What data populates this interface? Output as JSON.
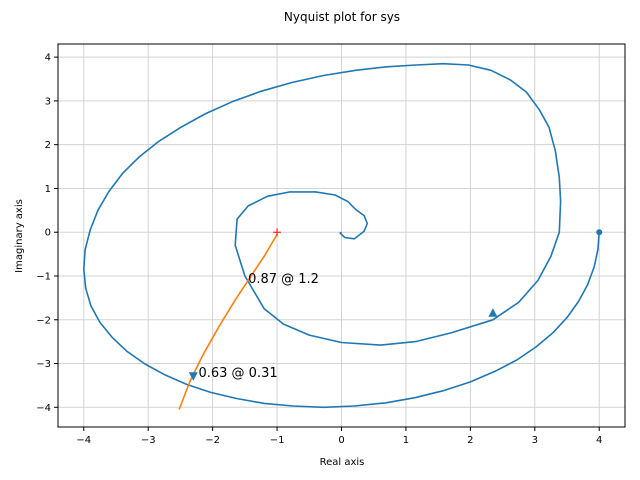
{
  "chart_data": {
    "type": "line",
    "title": "Nyquist plot for sys",
    "xlabel": "Real axis",
    "ylabel": "Imaginary axis",
    "xlim": [
      -4.4,
      4.4
    ],
    "ylim": [
      -4.45,
      4.3
    ],
    "grid": true,
    "xticks": [
      -4,
      -3,
      -2,
      -1,
      0,
      1,
      2,
      3,
      4
    ],
    "yticks": [
      -4,
      -3,
      -2,
      -1,
      0,
      1,
      2,
      3,
      4
    ],
    "series": [
      {
        "color": "#1f77b4",
        "x": [
          4.0,
          3.98,
          3.92,
          3.82,
          3.68,
          3.5,
          3.28,
          3.02,
          2.72,
          2.38,
          2.0,
          1.58,
          1.14,
          0.68,
          0.2,
          -0.28,
          -0.75,
          -1.2,
          -1.63,
          -2.03,
          -2.4,
          -2.74,
          -3.05,
          -3.33,
          -3.56,
          -3.75,
          -3.89,
          -3.97,
          -4.0,
          -3.98,
          -3.9,
          -3.78,
          -3.61,
          -3.4,
          -3.14,
          -2.84,
          -2.5,
          -2.12,
          -1.7,
          -1.25,
          -0.77,
          -0.28,
          0.22,
          0.7,
          1.16,
          1.58,
          1.97,
          2.32,
          2.62,
          2.87,
          3.07,
          3.22,
          3.32,
          3.38,
          3.4,
          3.38,
          3.25,
          3.05,
          2.75,
          2.35,
          1.7,
          1.15,
          0.6,
          0.0,
          -0.5,
          -0.9,
          -1.2,
          -1.5,
          -1.65,
          -1.62,
          -1.45,
          -1.15,
          -0.8,
          -0.4,
          -0.1,
          0.1,
          0.22,
          0.35,
          0.4,
          0.35,
          0.2,
          0.05,
          -0.02,
          0.0
        ],
        "y": [
          0.0,
          -0.4,
          -0.8,
          -1.2,
          -1.58,
          -1.95,
          -2.3,
          -2.62,
          -2.92,
          -3.18,
          -3.42,
          -3.62,
          -3.78,
          -3.9,
          -3.97,
          -4.0,
          -3.97,
          -3.91,
          -3.8,
          -3.66,
          -3.48,
          -3.26,
          -3.01,
          -2.72,
          -2.4,
          -2.06,
          -1.68,
          -1.28,
          -0.85,
          -0.4,
          0.05,
          0.5,
          0.93,
          1.34,
          1.72,
          2.07,
          2.39,
          2.7,
          2.98,
          3.22,
          3.42,
          3.58,
          3.7,
          3.78,
          3.82,
          3.85,
          3.82,
          3.7,
          3.48,
          3.2,
          2.8,
          2.4,
          1.85,
          1.25,
          0.7,
          0.0,
          -0.55,
          -1.1,
          -1.6,
          -2.0,
          -2.3,
          -2.5,
          -2.58,
          -2.52,
          -2.35,
          -2.1,
          -1.75,
          -1.0,
          -0.3,
          0.3,
          0.6,
          0.82,
          0.92,
          0.92,
          0.85,
          0.7,
          0.52,
          0.38,
          0.2,
          0.02,
          -0.15,
          -0.12,
          -0.02,
          0.0
        ]
      },
      {
        "color": "#ff7f0e",
        "x": [
          -2.52,
          -2.35,
          -2.15,
          -1.9,
          -1.65,
          -1.45,
          -1.2,
          -1.0
        ],
        "y": [
          -4.05,
          -3.4,
          -2.8,
          -2.15,
          -1.55,
          -1.1,
          -0.55,
          -0.05
        ]
      }
    ],
    "markers": [
      {
        "name": "start-point",
        "x": 4.0,
        "y": 0.0,
        "shape": "circle",
        "color": "#1f77b4"
      },
      {
        "name": "arrow-blue",
        "x": 2.35,
        "y": -1.85,
        "shape": "triangle-up",
        "color": "#1f77b4"
      },
      {
        "name": "critical-point",
        "x": -1.0,
        "y": 0.0,
        "shape": "plus",
        "color": "#ff0000"
      },
      {
        "name": "arrow-orange",
        "x": -2.3,
        "y": -3.28,
        "shape": "triangle-down",
        "color": "#1f77b4"
      }
    ],
    "annotations": [
      {
        "text": "0.87 @ 1.2",
        "x": -1.45,
        "y": -1.07
      },
      {
        "text": "0.63 @ 0.31",
        "x": -2.22,
        "y": -3.22
      }
    ]
  }
}
